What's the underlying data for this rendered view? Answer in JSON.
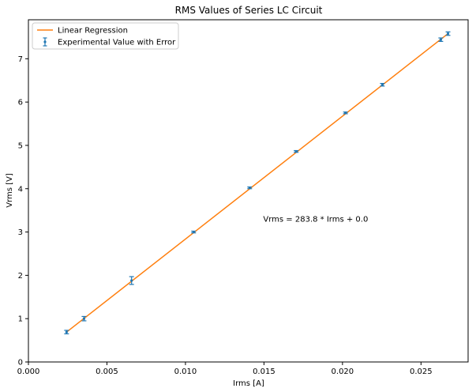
{
  "chart_data": {
    "type": "scatter",
    "title": "RMS Values of Series LC Circuit",
    "xlabel": "Irms [A]",
    "ylabel": "Vrms [V]",
    "xlim": [
      0.0,
      0.028
    ],
    "ylim": [
      0,
      7.9
    ],
    "x_ticks": [
      0.0,
      0.005,
      0.01,
      0.015,
      0.02,
      0.025
    ],
    "x_tick_labels": [
      "0.000",
      "0.005",
      "0.010",
      "0.015",
      "0.020",
      "0.025"
    ],
    "y_ticks": [
      0,
      1,
      2,
      3,
      4,
      5,
      6,
      7
    ],
    "y_tick_labels": [
      "0",
      "1",
      "2",
      "3",
      "4",
      "5",
      "6",
      "7"
    ],
    "grid": false,
    "legend_position": "top-left",
    "series": [
      {
        "name": "Experimental Value with Error",
        "kind": "errorbar",
        "color": "#1f77b4",
        "x": [
          0.00243,
          0.00354,
          0.00657,
          0.01052,
          0.01409,
          0.01705,
          0.02019,
          0.02254,
          0.02626,
          0.02672
        ],
        "y": [
          0.69,
          1.0,
          1.88,
          3.0,
          4.02,
          4.86,
          5.75,
          6.4,
          7.44,
          7.58
        ],
        "yerr": [
          0.04,
          0.05,
          0.09,
          0.02,
          0.02,
          0.02,
          0.02,
          0.03,
          0.04,
          0.04
        ]
      },
      {
        "name": "Linear Regression",
        "kind": "line",
        "color": "#ff7f0e",
        "x": [
          0.00243,
          0.02672
        ],
        "y": [
          0.69,
          7.58
        ]
      }
    ],
    "annotations": [
      {
        "text": "Vrms = 283.8 * Irms + 0.0",
        "x": 0.01495,
        "y": 3.3
      }
    ]
  }
}
